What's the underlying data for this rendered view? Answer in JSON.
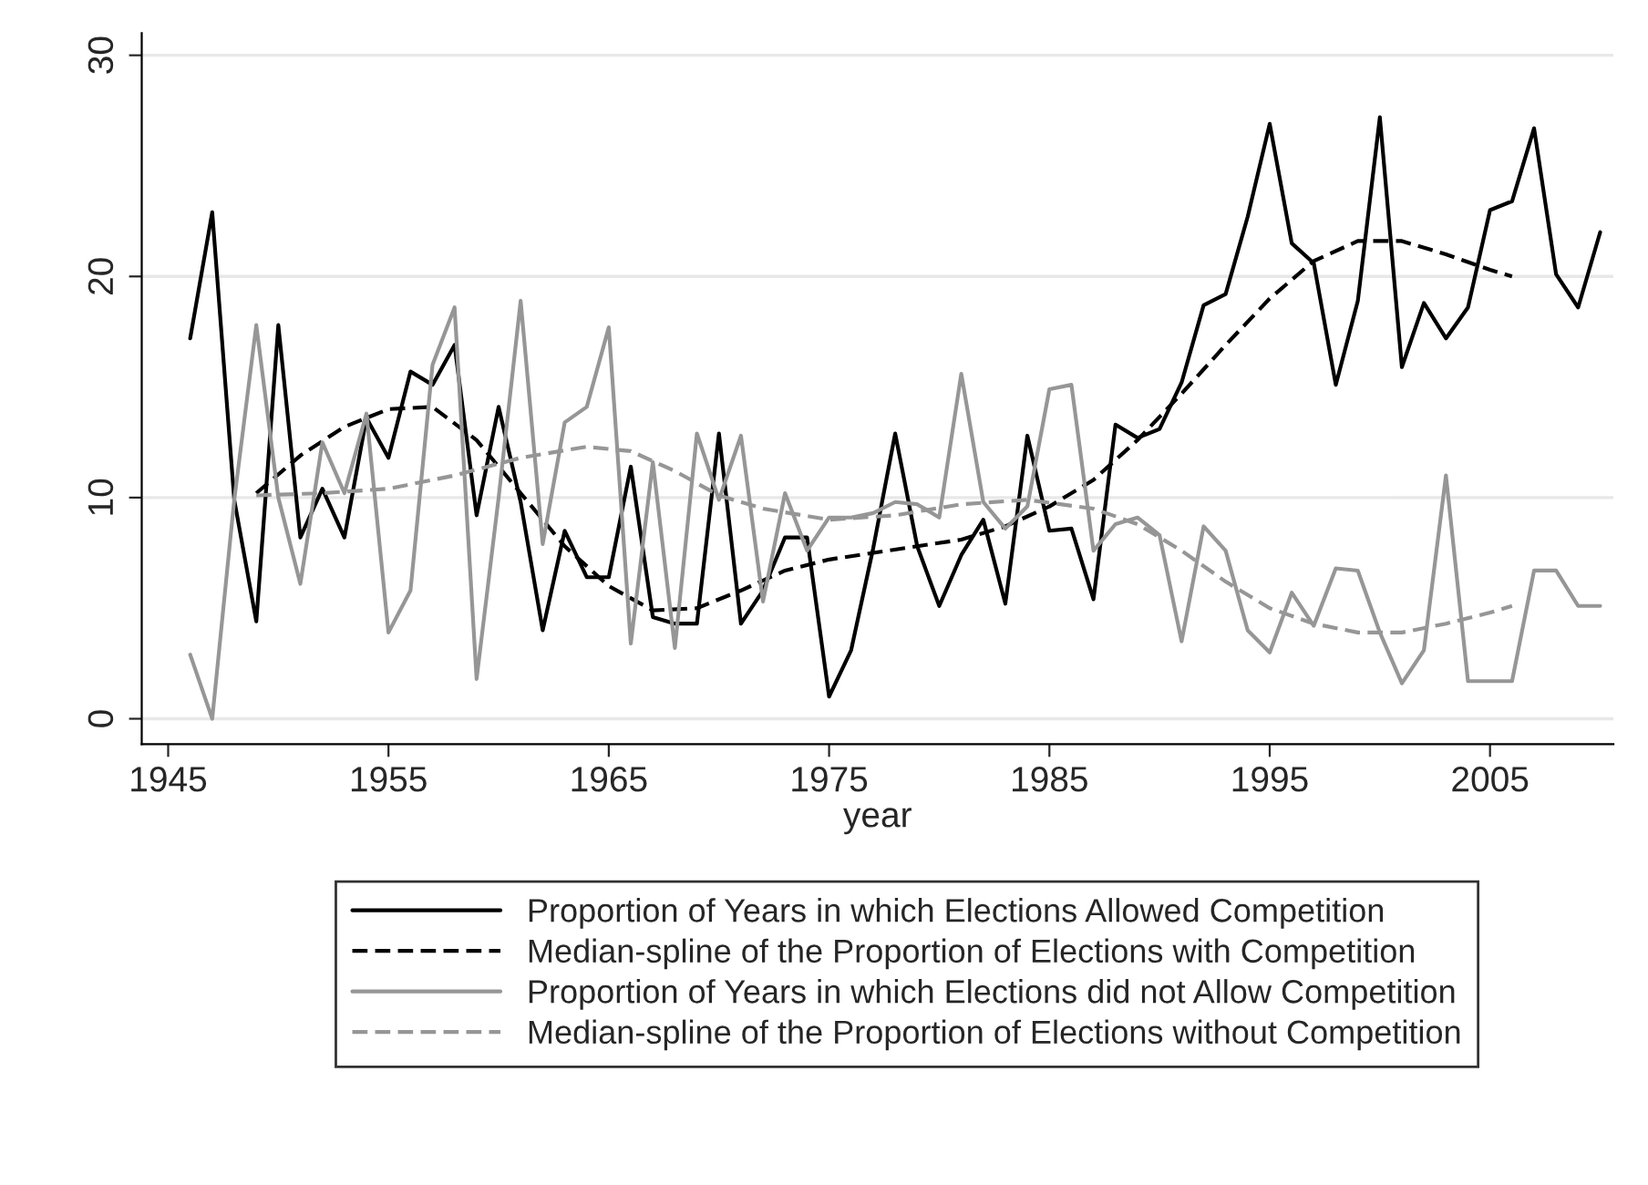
{
  "chart_data": {
    "type": "line",
    "xlabel": "year",
    "xlim": [
      1943.8,
      2010.6
    ],
    "xticks": [
      1945,
      1955,
      1965,
      1975,
      1985,
      1995,
      2005
    ],
    "ylim": [
      -1.15,
      31
    ],
    "yticks": [
      0,
      10,
      20,
      30
    ],
    "grid": "y",
    "legend": "bottom",
    "series": [
      {
        "name": "Proportion of Years in which Elections Allowed Competition",
        "color": "#000000",
        "line_style": "solid",
        "x": [
          1946,
          1947,
          1948,
          1949,
          1950,
          1951,
          1952,
          1953,
          1954,
          1955,
          1956,
          1957,
          1958,
          1959,
          1960,
          1961,
          1962,
          1963,
          1964,
          1965,
          1966,
          1967,
          1968,
          1969,
          1970,
          1971,
          1972,
          1973,
          1974,
          1975,
          1976,
          1977,
          1978,
          1979,
          1980,
          1981,
          1982,
          1983,
          1984,
          1985,
          1986,
          1987,
          1988,
          1989,
          1990,
          1991,
          1992,
          1993,
          1994,
          1995,
          1996,
          1997,
          1998,
          1999,
          2000,
          2001,
          2002,
          2003,
          2004,
          2005,
          2006,
          2007,
          2008,
          2009,
          2010
        ],
        "values": [
          17.2,
          22.9,
          9.9,
          4.4,
          17.8,
          8.2,
          10.4,
          8.2,
          13.6,
          11.8,
          15.7,
          15.1,
          16.9,
          9.2,
          14.1,
          9.8,
          4.0,
          8.5,
          6.4,
          6.4,
          11.4,
          4.6,
          4.3,
          4.3,
          12.9,
          4.3,
          5.8,
          8.2,
          8.2,
          1.0,
          3.1,
          7.7,
          12.9,
          7.8,
          5.1,
          7.4,
          9.0,
          5.2,
          12.8,
          8.5,
          8.6,
          5.4,
          13.3,
          12.7,
          13.1,
          15.2,
          18.7,
          19.2,
          22.7,
          26.9,
          21.5,
          20.6,
          15.1,
          18.9,
          27.2,
          15.9,
          18.8,
          17.2,
          18.6,
          23.0,
          23.4,
          26.7,
          20.1,
          18.6,
          22.0
        ]
      },
      {
        "name": "Median-spline of the Proportion of Elections with Competition",
        "color": "#000000",
        "line_style": "dashed",
        "x": [
          1949,
          1951,
          1953,
          1955,
          1957,
          1959,
          1961,
          1963,
          1965,
          1967,
          1969,
          1971,
          1973,
          1975,
          1977,
          1979,
          1981,
          1983,
          1985,
          1987,
          1989,
          1991,
          1993,
          1995,
          1997,
          1999,
          2001,
          2003,
          2005,
          2006
        ],
        "values": [
          10.2,
          11.9,
          13.2,
          14.0,
          14.1,
          12.6,
          10.2,
          7.8,
          6.0,
          4.9,
          5.0,
          5.8,
          6.7,
          7.2,
          7.5,
          7.8,
          8.1,
          8.7,
          9.6,
          10.8,
          12.6,
          14.7,
          16.9,
          19.0,
          20.7,
          21.6,
          21.6,
          21.0,
          20.3,
          20.0
        ]
      },
      {
        "name": "Proportion of Years in which Elections did not Allow Competition",
        "color": "#969696",
        "line_style": "solid",
        "x": [
          1946,
          1947,
          1948,
          1949,
          1950,
          1951,
          1952,
          1953,
          1954,
          1955,
          1956,
          1957,
          1958,
          1959,
          1960,
          1961,
          1962,
          1963,
          1964,
          1965,
          1966,
          1967,
          1968,
          1969,
          1970,
          1971,
          1972,
          1973,
          1974,
          1975,
          1976,
          1977,
          1978,
          1979,
          1980,
          1981,
          1982,
          1983,
          1984,
          1985,
          1986,
          1987,
          1988,
          1989,
          1990,
          1991,
          1992,
          1993,
          1994,
          1995,
          1996,
          1997,
          1998,
          1999,
          2000,
          2001,
          2002,
          2003,
          2004,
          2005,
          2006,
          2007,
          2008,
          2009,
          2010
        ],
        "values": [
          2.9,
          0,
          9.9,
          17.8,
          10.0,
          6.1,
          12.5,
          10.2,
          13.8,
          3.9,
          5.8,
          16.0,
          18.6,
          1.8,
          10.0,
          18.9,
          7.9,
          13.4,
          14.1,
          17.7,
          3.4,
          11.6,
          3.2,
          12.9,
          9.9,
          12.8,
          5.3,
          10.2,
          7.6,
          9.1,
          9.1,
          9.3,
          9.8,
          9.7,
          9.1,
          15.6,
          9.8,
          8.6,
          9.6,
          14.9,
          15.1,
          7.6,
          8.8,
          9.1,
          8.3,
          3.5,
          8.7,
          7.6,
          4.0,
          3.0,
          5.7,
          4.2,
          6.8,
          6.7,
          3.9,
          1.6,
          3.1,
          11.0,
          1.7,
          1.7,
          1.7,
          6.7,
          6.7,
          5.1,
          5.1
        ]
      },
      {
        "name": "Median-spline of the Proportion of Elections without Competition",
        "color": "#969696",
        "line_style": "dashed",
        "x": [
          1949,
          1952,
          1955,
          1958,
          1961,
          1964,
          1966,
          1968,
          1970,
          1972,
          1975,
          1978,
          1981,
          1984,
          1987,
          1989,
          1991,
          1993,
          1995,
          1997,
          1999,
          2001,
          2003,
          2005,
          2006
        ],
        "values": [
          10.1,
          10.2,
          10.4,
          11.0,
          11.8,
          12.3,
          12.1,
          11.2,
          10.1,
          9.5,
          9.0,
          9.2,
          9.7,
          9.9,
          9.5,
          8.8,
          7.6,
          6.2,
          5.0,
          4.3,
          3.9,
          3.9,
          4.3,
          4.8,
          5.1
        ]
      }
    ]
  }
}
